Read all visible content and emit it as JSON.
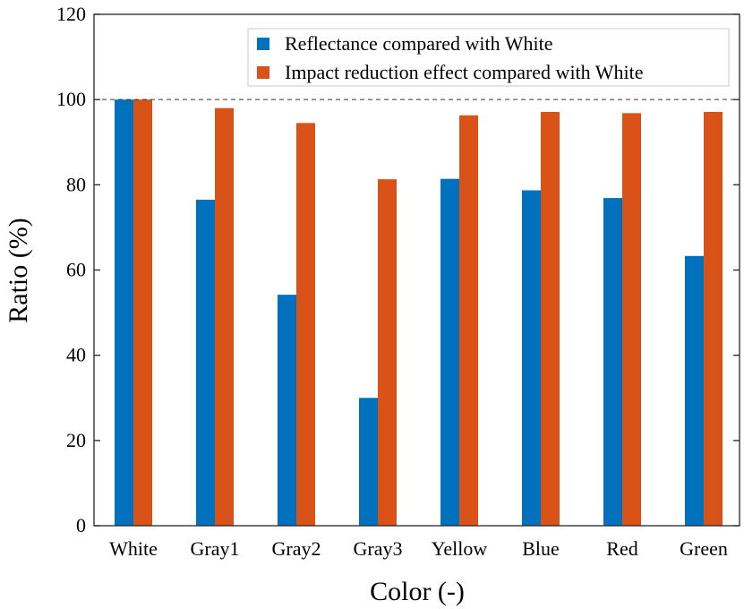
{
  "chart_data": {
    "type": "bar",
    "title": "",
    "xlabel": "Color (-)",
    "ylabel": "Ratio (%)",
    "ylim": [
      0,
      120
    ],
    "yticks": [
      0,
      20,
      40,
      60,
      80,
      100,
      120
    ],
    "categories": [
      "White",
      "Gray1",
      "Gray2",
      "Gray3",
      "Yellow",
      "Blue",
      "Red",
      "Green"
    ],
    "series": [
      {
        "name": "Reflectance compared with White",
        "color": "#0072BD",
        "values": [
          100,
          76.5,
          54.2,
          30.0,
          81.4,
          78.7,
          76.9,
          63.3
        ]
      },
      {
        "name": "Impact reduction effect compared with White",
        "color": "#D95319",
        "values": [
          100,
          98.0,
          94.5,
          81.3,
          96.3,
          97.1,
          96.8,
          97.1
        ]
      }
    ],
    "reference_line": 100,
    "grid": false,
    "legend": "top-right"
  }
}
